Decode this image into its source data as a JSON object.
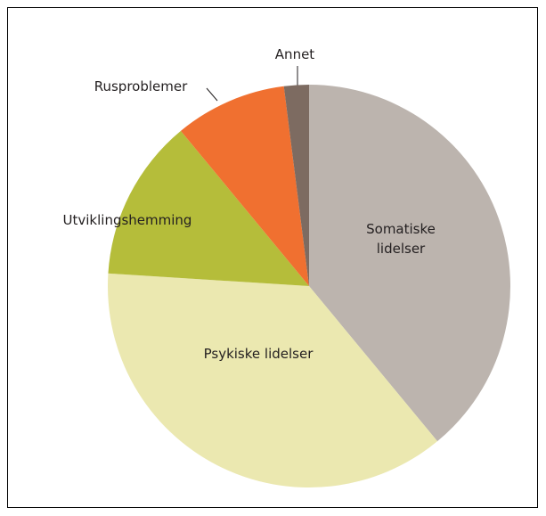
{
  "chart_data": {
    "type": "pie",
    "categories": [
      "Somatiske lidelser",
      "Psykiske lidelser",
      "Utviklingshemming",
      "Rusproblemer",
      "Annet"
    ],
    "values": [
      39,
      37,
      13,
      9,
      2
    ],
    "colors": [
      "#bcb4ae",
      "#ebe8b0",
      "#b5bd3a",
      "#f07030",
      "#7d6b61"
    ]
  }
}
